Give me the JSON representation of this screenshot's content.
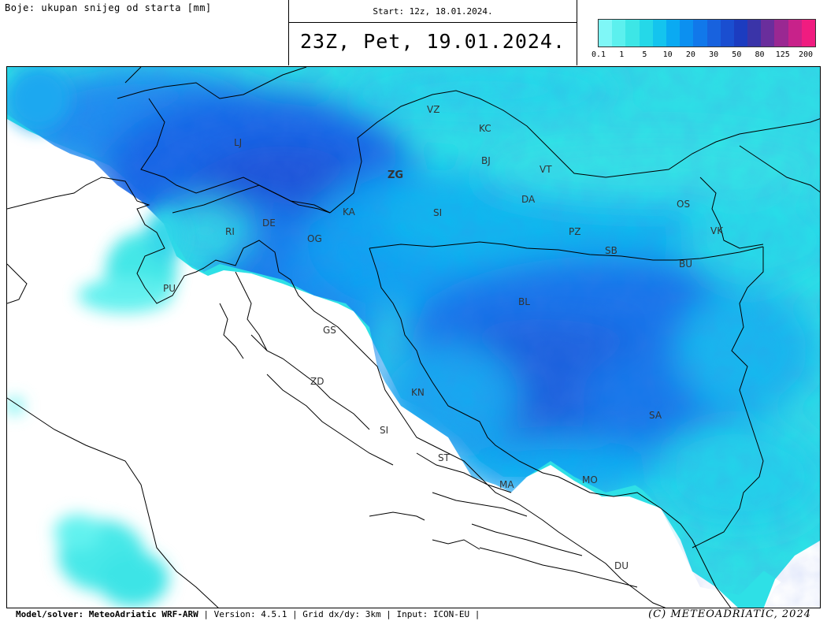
{
  "header": {
    "field_label": "Boje: ukupan snijeg od starta [mm]",
    "start_label": "Start: 12z, 18.01.2024.",
    "valid_time": "23Z, Pet, 19.01.2024."
  },
  "legend": {
    "ticks": [
      "0.1",
      "1",
      "5",
      "10",
      "20",
      "30",
      "50",
      "80",
      "125",
      "200"
    ],
    "colors": [
      "#7ff7f7",
      "#5cf0ee",
      "#3de6e6",
      "#25d8e8",
      "#14c4ee",
      "#0aaaf2",
      "#0c90f0",
      "#1178ea",
      "#1862de",
      "#1a4ed0",
      "#1c3cc0",
      "#3a34a8",
      "#6a2e9c",
      "#9a2892",
      "#c8228a",
      "#f01c80"
    ]
  },
  "map": {
    "places": [
      {
        "code": "LJ"
      },
      {
        "code": "VZ"
      },
      {
        "code": "KC"
      },
      {
        "code": "BJ"
      },
      {
        "code": "ZG",
        "capital": true
      },
      {
        "code": "VT"
      },
      {
        "code": "KA"
      },
      {
        "code": "SI"
      },
      {
        "code": "DA"
      },
      {
        "code": "OS"
      },
      {
        "code": "DE"
      },
      {
        "code": "RI"
      },
      {
        "code": "OG"
      },
      {
        "code": "PZ"
      },
      {
        "code": "VK"
      },
      {
        "code": "SB"
      },
      {
        "code": "BU"
      },
      {
        "code": "PU"
      },
      {
        "code": "BL"
      },
      {
        "code": "GS"
      },
      {
        "code": "ZD"
      },
      {
        "code": "KN"
      },
      {
        "code": "SA"
      },
      {
        "code": "SI"
      },
      {
        "code": "ST"
      },
      {
        "code": "MO"
      },
      {
        "code": "MA"
      },
      {
        "code": "DU"
      }
    ]
  },
  "footer": {
    "model_label": "Model/solver: MeteoAdriatic WRF-ARW",
    "info": "| Version: 4.5.1 | Grid dx/dy: 3km | Input: ICON-EU |",
    "copyright": "(C) METEOADRIATIC, 2024"
  }
}
